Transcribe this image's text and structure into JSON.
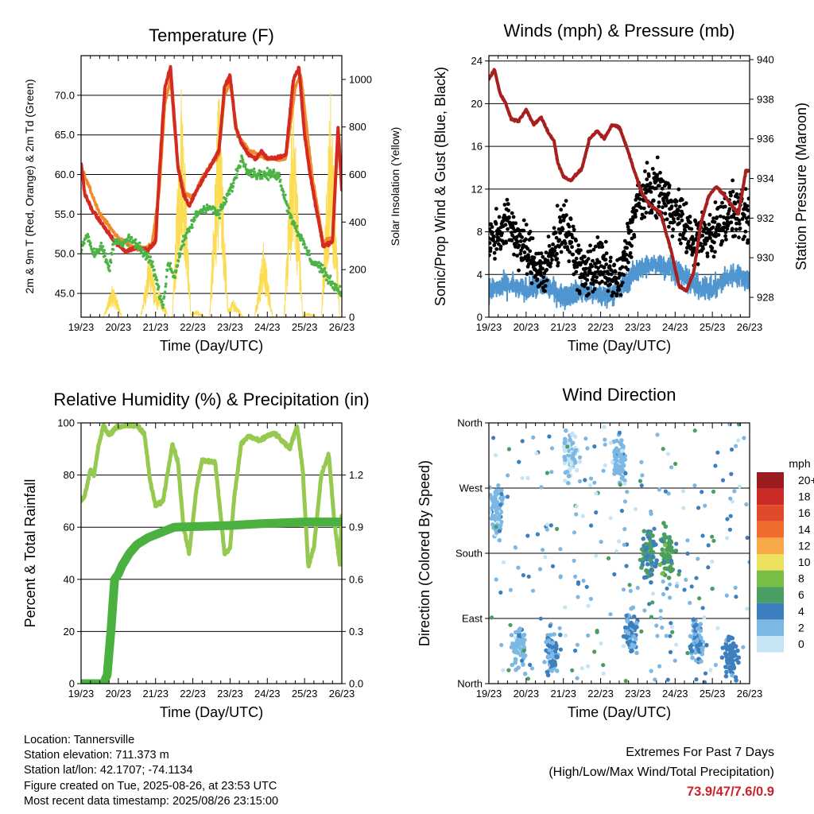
{
  "chart_data": [
    {
      "id": "temp",
      "type": "line",
      "title": "Temperature (F)",
      "xlabel": "Time (Day/UTC)",
      "ylabel": "2m & 9m T (Red, Orange) & 2m Td (Green)",
      "ylabel_right": "Solar Insolation (Yellow)",
      "x_ticks": [
        "19/23",
        "20/23",
        "21/23",
        "22/23",
        "23/23",
        "24/23",
        "25/23",
        "26/23"
      ],
      "ylim": [
        42,
        75
      ],
      "y_ticks": [
        "45.0",
        "50.0",
        "55.0",
        "60.0",
        "65.0",
        "70.0"
      ],
      "y_tick_values": [
        45,
        50,
        55,
        60,
        65,
        70
      ],
      "y2lim": [
        0,
        1100
      ],
      "y2_ticks": [
        "0",
        "200",
        "400",
        "600",
        "800",
        "1000"
      ],
      "y2_tick_values": [
        0,
        200,
        400,
        600,
        800,
        1000
      ],
      "grid": "horizontal",
      "series": [
        {
          "name": "2m T",
          "color": "#d42a20",
          "axis": "left",
          "x": [
            0,
            0.1,
            0.3,
            0.6,
            0.9,
            1.2,
            1.5,
            1.8,
            2.0,
            2.1,
            2.25,
            2.4,
            2.6,
            2.75,
            2.9,
            3.1,
            3.4,
            3.7,
            3.85,
            4.0,
            4.15,
            4.3,
            4.5,
            4.7,
            4.85,
            5.0,
            5.2,
            5.5,
            5.7,
            5.85,
            6.0,
            6.15,
            6.3,
            6.5,
            6.75,
            6.9,
            7.0
          ],
          "values": [
            61.5,
            57.5,
            55.5,
            53.5,
            51.5,
            50.3,
            50.8,
            50.5,
            51.5,
            60,
            71,
            73.5,
            61,
            57.5,
            56,
            58,
            60.5,
            63,
            71,
            72.5,
            66,
            64,
            62.5,
            62,
            63,
            62,
            62,
            62.5,
            72,
            73.5,
            65,
            60,
            56,
            51,
            51.5,
            66,
            58
          ]
        },
        {
          "name": "9m T",
          "color": "#ef8a2e",
          "axis": "left",
          "x": [
            0,
            0.5,
            1.0,
            1.5,
            1.9,
            2.1,
            2.25,
            2.4,
            2.6,
            2.8,
            3.0,
            3.3,
            3.7,
            3.85,
            4.0,
            4.2,
            4.5,
            5.0,
            5.5,
            5.75,
            5.9,
            6.2,
            6.5,
            6.75,
            6.9,
            7.0
          ],
          "values": [
            61,
            55,
            52,
            50.5,
            51,
            58,
            69,
            72,
            61,
            57.5,
            57,
            60,
            62.5,
            70,
            71.5,
            65,
            63,
            62,
            62,
            71,
            72.5,
            60,
            51.5,
            52,
            65,
            58
          ]
        },
        {
          "name": "2m Td",
          "color": "#4db347",
          "axis": "left",
          "x": [
            0,
            0.15,
            0.35,
            0.55,
            0.75,
            0.9,
            1.1,
            1.3,
            1.5,
            1.7,
            1.9,
            2.05,
            2.2,
            2.35,
            2.5,
            2.7,
            2.9,
            3.1,
            3.4,
            3.7,
            3.9,
            4.1,
            4.3,
            4.5,
            4.7,
            5.0,
            5.3,
            5.6,
            5.8,
            6.0,
            6.2,
            6.4,
            6.6,
            6.8,
            7.0
          ],
          "values": [
            50.5,
            52.5,
            50,
            51,
            48,
            52,
            51,
            52,
            51,
            50,
            49,
            46,
            43.5,
            49,
            47,
            51,
            53,
            55,
            56,
            55,
            57,
            59,
            62,
            60.5,
            60,
            60,
            60,
            55,
            53,
            51,
            49,
            48.5,
            47,
            46,
            45
          ]
        },
        {
          "name": "Solar Insolation",
          "color": "#fbdc52",
          "axis": "right",
          "note": "daily peaks",
          "x": [
            0.85,
            1.4,
            1.85,
            2.1,
            2.7,
            3.1,
            3.7,
            4.1,
            4.9,
            5.2,
            5.7,
            6.1,
            6.7,
            6.95
          ],
          "values": [
            150,
            0,
            300,
            120,
            1050,
            30,
            1000,
            80,
            320,
            0,
            1000,
            20,
            1000,
            0
          ]
        }
      ]
    },
    {
      "id": "winds",
      "type": "scatter",
      "title": "Winds (mph) & Pressure (mb)",
      "xlabel": "Time (Day/UTC)",
      "ylabel": "Sonic/Prop Wind & Gust (Blue, Black)",
      "ylabel_right": "Station Pressure (Maroon)",
      "x_ticks": [
        "19/23",
        "20/23",
        "21/23",
        "22/23",
        "23/23",
        "24/23",
        "25/23",
        "26/23"
      ],
      "ylim": [
        0,
        24.5
      ],
      "y_ticks": [
        "0",
        "4",
        "8",
        "12",
        "16",
        "20",
        "24"
      ],
      "y_tick_values": [
        0,
        4,
        8,
        12,
        16,
        20,
        24
      ],
      "y2lim": [
        927,
        940.2
      ],
      "y2_ticks": [
        "928",
        "930",
        "932",
        "934",
        "936",
        "938",
        "940"
      ],
      "y2_tick_values": [
        928,
        930,
        932,
        934,
        936,
        938,
        940
      ],
      "grid": "horizontal",
      "series": [
        {
          "name": "Wind",
          "color": "#4f95cf",
          "axis": "left",
          "x": [
            0,
            0.5,
            1.0,
            1.5,
            2.0,
            2.5,
            3.0,
            3.5,
            4.0,
            4.5,
            5.0,
            5.5,
            6.0,
            6.5,
            7.0
          ],
          "values": [
            2.5,
            3,
            2.5,
            3,
            2,
            2.5,
            2,
            2.5,
            4.5,
            5,
            4.5,
            3,
            2.5,
            4,
            3.5
          ]
        },
        {
          "name": "Gust",
          "color": "#000000",
          "axis": "left",
          "x": [
            0,
            0.5,
            1.0,
            1.5,
            2.0,
            2.5,
            3.0,
            3.5,
            4.0,
            4.5,
            5.0,
            5.5,
            6.0,
            6.5,
            7.0
          ],
          "values": [
            7,
            9,
            6,
            4,
            9,
            4,
            5,
            3,
            11,
            12,
            10,
            7,
            8,
            10,
            9
          ]
        },
        {
          "name": "Station Pressure",
          "color": "#a8201e",
          "axis": "right",
          "x": [
            0,
            0.15,
            0.3,
            0.45,
            0.6,
            0.8,
            1.0,
            1.2,
            1.4,
            1.6,
            1.75,
            1.85,
            2.0,
            2.2,
            2.5,
            2.7,
            2.9,
            3.1,
            3.3,
            3.5,
            3.7,
            3.9,
            4.1,
            4.3,
            4.6,
            4.9,
            5.1,
            5.3,
            5.5,
            5.7,
            5.9,
            6.1,
            6.3,
            6.5,
            6.7,
            6.9,
            7.0
          ],
          "values": [
            939,
            939.5,
            938.3,
            937.8,
            937,
            936.9,
            937.5,
            936.7,
            937.1,
            936.3,
            935.9,
            934.8,
            934.1,
            933.9,
            934.5,
            936,
            936.4,
            936,
            936.7,
            936.6,
            935.6,
            934.4,
            933.3,
            932.7,
            932.3,
            930.3,
            928.6,
            928.3,
            929.3,
            931.8,
            933.1,
            933.6,
            933.2,
            932.7,
            932.2,
            934.4,
            934.4
          ]
        }
      ]
    },
    {
      "id": "rh",
      "type": "line",
      "title": "Relative Humidity (%) & Precipitation (in)",
      "xlabel": "Time (Day/UTC)",
      "ylabel": "Percent & Total Rainfall",
      "x_ticks": [
        "19/23",
        "20/23",
        "21/23",
        "22/23",
        "23/23",
        "24/23",
        "25/23",
        "26/23"
      ],
      "ylim": [
        0,
        100
      ],
      "y_ticks": [
        "0",
        "20",
        "40",
        "60",
        "80",
        "100"
      ],
      "y_tick_values": [
        0,
        20,
        40,
        60,
        80,
        100
      ],
      "y2lim": [
        0,
        1.5
      ],
      "y2_ticks": [
        "0.0",
        "0.3",
        "0.6",
        "0.9",
        "1.2"
      ],
      "y2_tick_values": [
        0,
        0.3,
        0.6,
        0.9,
        1.2
      ],
      "grid": "horizontal",
      "series": [
        {
          "name": "Relative Humidity",
          "color": "#96c94f",
          "axis": "left",
          "x": [
            0,
            0.1,
            0.25,
            0.35,
            0.45,
            0.6,
            0.75,
            0.9,
            1.2,
            1.5,
            1.7,
            1.85,
            2.0,
            2.2,
            2.45,
            2.6,
            2.75,
            2.9,
            3.1,
            3.25,
            3.4,
            3.6,
            3.85,
            4.0,
            4.1,
            4.3,
            4.5,
            4.8,
            5.0,
            5.2,
            5.4,
            5.6,
            5.8,
            5.95,
            6.1,
            6.25,
            6.45,
            6.65,
            6.8,
            6.95,
            7.0
          ],
          "values": [
            70,
            72,
            82,
            80,
            90,
            99,
            95,
            98,
            99,
            99,
            96,
            78,
            68,
            70,
            92,
            85,
            60,
            50,
            75,
            86,
            85,
            85,
            50,
            52,
            70,
            92,
            95,
            93,
            95,
            96,
            93,
            90,
            99,
            82,
            45,
            52,
            80,
            88,
            62,
            45,
            68
          ]
        },
        {
          "name": "Total Precipitation",
          "color": "#4ab140",
          "axis": "right",
          "x": [
            0,
            0.6,
            0.7,
            0.8,
            0.9,
            1.0,
            1.1,
            1.3,
            1.5,
            1.8,
            2.5,
            4.0,
            4.8,
            6.0,
            7.0
          ],
          "values": [
            0,
            0,
            0.05,
            0.3,
            0.6,
            0.63,
            0.68,
            0.75,
            0.8,
            0.84,
            0.9,
            0.91,
            0.92,
            0.93,
            0.93
          ]
        }
      ]
    },
    {
      "id": "wdir",
      "type": "scatter",
      "title": "Wind Direction",
      "xlabel": "Time (Day/UTC)",
      "ylabel": "Direction (Colored By Speed)",
      "x_ticks": [
        "19/23",
        "20/23",
        "21/23",
        "22/23",
        "23/23",
        "24/23",
        "25/23",
        "26/23"
      ],
      "y_ticks": [
        "North",
        "East",
        "South",
        "West",
        "North"
      ],
      "ylim": [
        0,
        360
      ],
      "y_tick_values": [
        0,
        90,
        180,
        270,
        360
      ],
      "grid": "horizontal",
      "clusters": [
        {
          "x": 0.2,
          "dir": 125,
          "speed": 2
        },
        {
          "x": 0.8,
          "dir": 310,
          "speed": 2
        },
        {
          "x": 1.7,
          "dir": 320,
          "speed": 3
        },
        {
          "x": 2.2,
          "dir": 45,
          "speed": 1
        },
        {
          "x": 3.5,
          "dir": 50,
          "speed": 2
        },
        {
          "x": 3.8,
          "dir": 290,
          "speed": 3
        },
        {
          "x": 4.3,
          "dir": 180,
          "speed": 5
        },
        {
          "x": 4.8,
          "dir": 180,
          "speed": 6
        },
        {
          "x": 5.6,
          "dir": 300,
          "speed": 3
        },
        {
          "x": 6.5,
          "dir": 325,
          "speed": 4
        }
      ],
      "legend": {
        "title": "mph",
        "labels": [
          "20+",
          "18",
          "16",
          "14",
          "12",
          "10",
          "8",
          "6",
          "4",
          "2",
          "0"
        ],
        "colors": [
          "#9a1c1f",
          "#cc2a26",
          "#e04a2b",
          "#f06c2e",
          "#f7a848",
          "#ece25f",
          "#77bd46",
          "#4a9e62",
          "#3c7fbf",
          "#7db8e4",
          "#c5e5f5"
        ]
      }
    }
  ],
  "info": {
    "location": "Location: Tannersville",
    "elevation": "Station elevation: 711.373 m",
    "latlon": "Station lat/lon: 42.1707; -74.1134",
    "created": "Figure created on Tue, 2025-08-26, at 23:53 UTC",
    "recent": "Most recent data timestamp: 2025/08/26 23:15:00"
  },
  "extremes": {
    "title": "Extremes For Past 7 Days",
    "subtitle": "(High/Low/Max Wind/Total Precipitation)",
    "values": "73.9/47/7.6/0.9"
  }
}
